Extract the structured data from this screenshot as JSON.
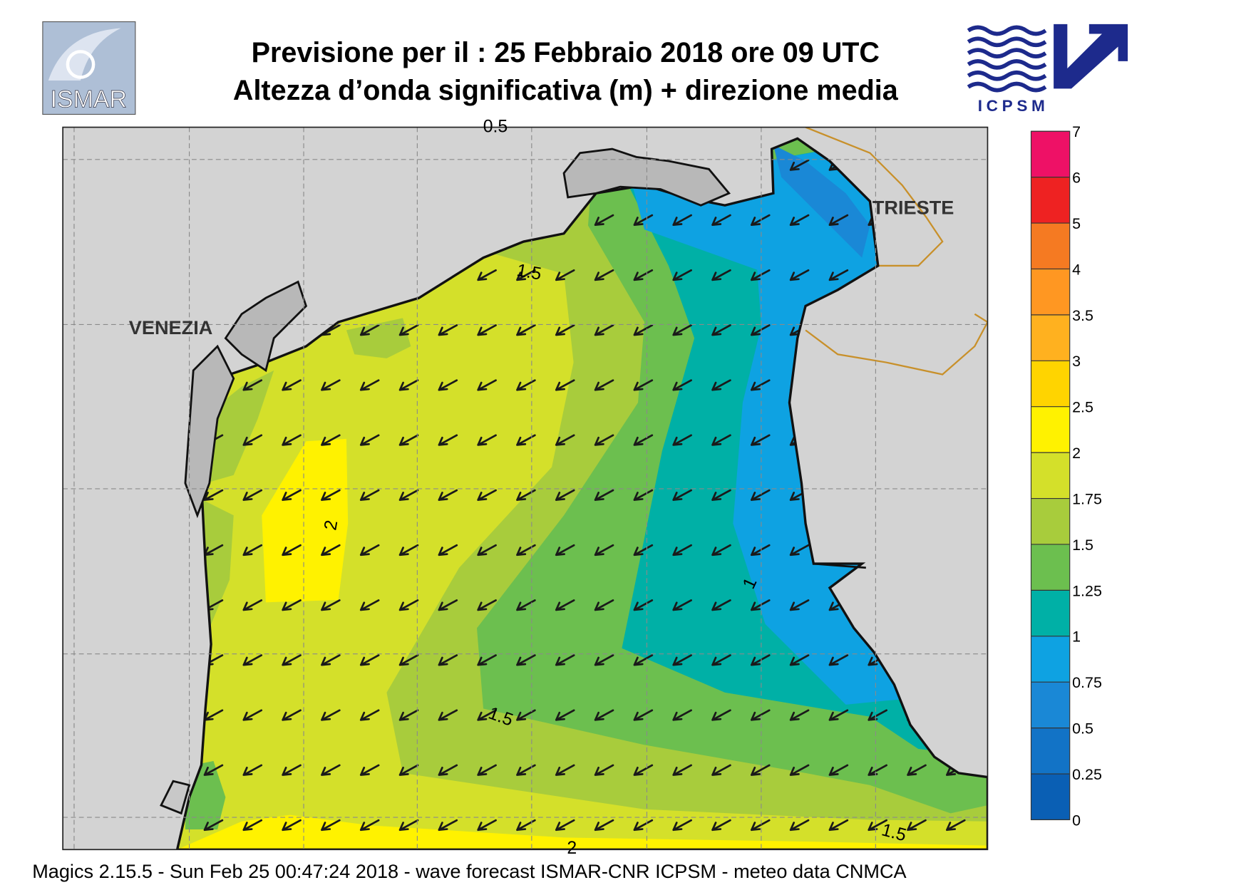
{
  "header": {
    "title_line1": "Previsione per il  :  25  Febbraio 2018   ore 09 UTC",
    "title_line2": "Altezza d’onda significativa (m) + direzione media"
  },
  "logos": {
    "left": "ISMAR",
    "right": "ICPSM"
  },
  "map": {
    "place_labels": [
      "VENEZIA",
      "TRIESTE"
    ],
    "contour_labels": [
      "0.5",
      "1.5",
      "2",
      "1",
      "1.5",
      "1.5",
      "2"
    ]
  },
  "colorbar": {
    "ticks": [
      0,
      0.25,
      0.5,
      0.75,
      1,
      1.25,
      1.5,
      1.75,
      2,
      2.5,
      3,
      3.5,
      4,
      5,
      6,
      7
    ],
    "colors": [
      "#0a5fb4",
      "#1273c6",
      "#1a88d6",
      "#0ea2e2",
      "#00b0a6",
      "#6cbf4f",
      "#a8cc3c",
      "#d4e02a",
      "#fff200",
      "#ffd400",
      "#ffb11f",
      "#ff9722",
      "#f57a22",
      "#ee2222",
      "#ee1166"
    ]
  },
  "footer": "Magics 2.15.5 - Sun Feb 25 00:47:24 2018 - wave forecast  ISMAR-CNR  ICPSM - meteo data   CNMCA"
}
